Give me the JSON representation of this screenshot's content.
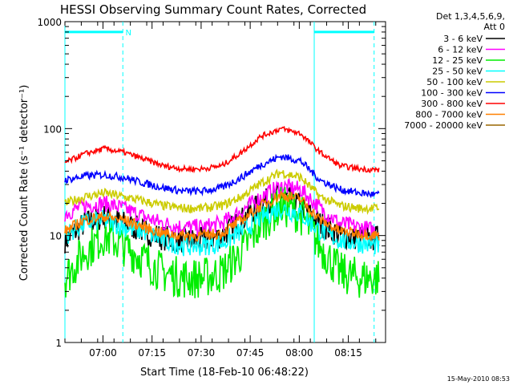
{
  "chart_data": {
    "type": "line",
    "title": "HESSI Observing Summary Count Rates, Corrected",
    "xlabel": "Start Time (18-Feb-10 06:48:22)",
    "ylabel": "Corrected Count Rate (s⁻¹ detector⁻¹)",
    "yscale": "log",
    "ylim": [
      1,
      1000
    ],
    "xlim_minutes": [
      0,
      98
    ],
    "x_ticks": [
      {
        "label": "07:00",
        "minute": 11.63
      },
      {
        "label": "07:15",
        "minute": 26.63
      },
      {
        "label": "07:30",
        "minute": 41.63
      },
      {
        "label": "07:45",
        "minute": 56.63
      },
      {
        "label": "08:00",
        "minute": 71.63
      },
      {
        "label": "08:15",
        "minute": 86.63
      }
    ],
    "y_ticks": [
      {
        "label": "1",
        "value": 1
      },
      {
        "label": "10",
        "value": 10
      },
      {
        "label": "100",
        "value": 100
      },
      {
        "label": "1000",
        "value": 1000
      }
    ],
    "legend_header": [
      "Det 1,3,4,5,6,9,",
      "Att 0"
    ],
    "legend_position": "right",
    "series": [
      {
        "name": "3 - 6 keV",
        "color": "#000000",
        "x": [
          0,
          6,
          12,
          18,
          24,
          30,
          36,
          42,
          48,
          54,
          60,
          66,
          72,
          78,
          84,
          90,
          96
        ],
        "values": [
          9,
          13,
          15,
          13,
          11,
          9.5,
          9,
          9,
          10,
          14,
          20,
          24,
          19,
          13,
          10,
          9.5,
          9.5
        ]
      },
      {
        "name": "6 - 12 keV",
        "color": "#ff00ff",
        "x": [
          0,
          6,
          12,
          18,
          24,
          30,
          36,
          42,
          48,
          54,
          60,
          66,
          72,
          78,
          84,
          90,
          96
        ],
        "values": [
          16,
          19,
          20,
          18,
          15,
          13,
          12,
          12,
          13,
          17,
          23,
          29,
          27,
          18,
          13,
          12,
          11
        ]
      },
      {
        "name": "12 - 25 keV",
        "color": "#00ee00",
        "x": [
          0,
          6,
          12,
          18,
          24,
          30,
          36,
          42,
          48,
          54,
          60,
          66,
          72,
          78,
          84,
          90,
          96
        ],
        "values": [
          4,
          7,
          10,
          8,
          6,
          4.5,
          4,
          4,
          4.5,
          7,
          13,
          19,
          16,
          8,
          4.5,
          4,
          4
        ]
      },
      {
        "name": "25 - 50 keV",
        "color": "#00ffff",
        "x": [
          0,
          6,
          12,
          18,
          24,
          30,
          36,
          42,
          48,
          54,
          60,
          66,
          72,
          78,
          84,
          90,
          96
        ],
        "values": [
          10,
          13,
          14,
          12,
          11,
          9,
          8,
          8,
          8.5,
          11,
          15,
          18,
          16,
          11,
          9,
          8.5,
          8
        ]
      },
      {
        "name": "50 - 100 keV",
        "color": "#cccc00",
        "x": [
          0,
          6,
          12,
          18,
          24,
          30,
          36,
          42,
          48,
          54,
          60,
          66,
          72,
          78,
          84,
          90,
          96
        ],
        "values": [
          20,
          23,
          25,
          23,
          21,
          19,
          18,
          18,
          19,
          23,
          31,
          39,
          35,
          23,
          19,
          18,
          18
        ]
      },
      {
        "name": "100 - 300 keV",
        "color": "#0000ff",
        "x": [
          0,
          6,
          12,
          18,
          24,
          30,
          36,
          42,
          48,
          54,
          60,
          66,
          72,
          78,
          84,
          90,
          96
        ],
        "values": [
          33,
          36,
          37,
          35,
          31,
          28,
          26,
          26,
          28,
          35,
          46,
          55,
          50,
          33,
          27,
          25,
          24
        ]
      },
      {
        "name": "300 - 800 keV",
        "color": "#ff0000",
        "x": [
          0,
          6,
          12,
          18,
          24,
          30,
          36,
          42,
          48,
          54,
          60,
          66,
          72,
          78,
          84,
          90,
          96
        ],
        "values": [
          48,
          58,
          65,
          60,
          52,
          45,
          42,
          42,
          45,
          60,
          85,
          100,
          90,
          60,
          45,
          42,
          41
        ]
      },
      {
        "name": "800 - 7000 keV",
        "color": "#ff8000",
        "x": [
          0,
          6,
          12,
          18,
          24,
          30,
          36,
          42,
          48,
          54,
          60,
          66,
          72,
          78,
          84,
          90,
          96
        ],
        "values": [
          11,
          14,
          15,
          14,
          12,
          10.5,
          10,
          10,
          10.5,
          14,
          19,
          24,
          22,
          14,
          11,
          10.5,
          10
        ]
      },
      {
        "name": "7000 - 20000 keV",
        "color": "#996600",
        "x": [],
        "values": []
      }
    ],
    "annotations": [
      {
        "type": "saa_bar",
        "label": "",
        "x_start": 0,
        "x_end": 17.7,
        "y": 800,
        "color": "#00ffff"
      },
      {
        "type": "saa_bar",
        "label": "",
        "x_start": 76.2,
        "x_end": 94.5,
        "y": 800,
        "color": "#00ffff"
      },
      {
        "type": "marker",
        "label": "N",
        "x": 18.5,
        "y": 800,
        "color": "#00ffff"
      },
      {
        "type": "vline",
        "x": 17.7,
        "style": "dashed",
        "color": "#00ffff"
      },
      {
        "type": "vline",
        "x": 94.5,
        "style": "dashed",
        "color": "#00ffff"
      },
      {
        "type": "vline",
        "x": 0,
        "style": "solid",
        "color": "#00ffff"
      },
      {
        "type": "vline",
        "x": 76.2,
        "style": "solid",
        "color": "#00ffff"
      }
    ]
  },
  "footer": {
    "timestamp": "15-May-2010 08:53"
  }
}
